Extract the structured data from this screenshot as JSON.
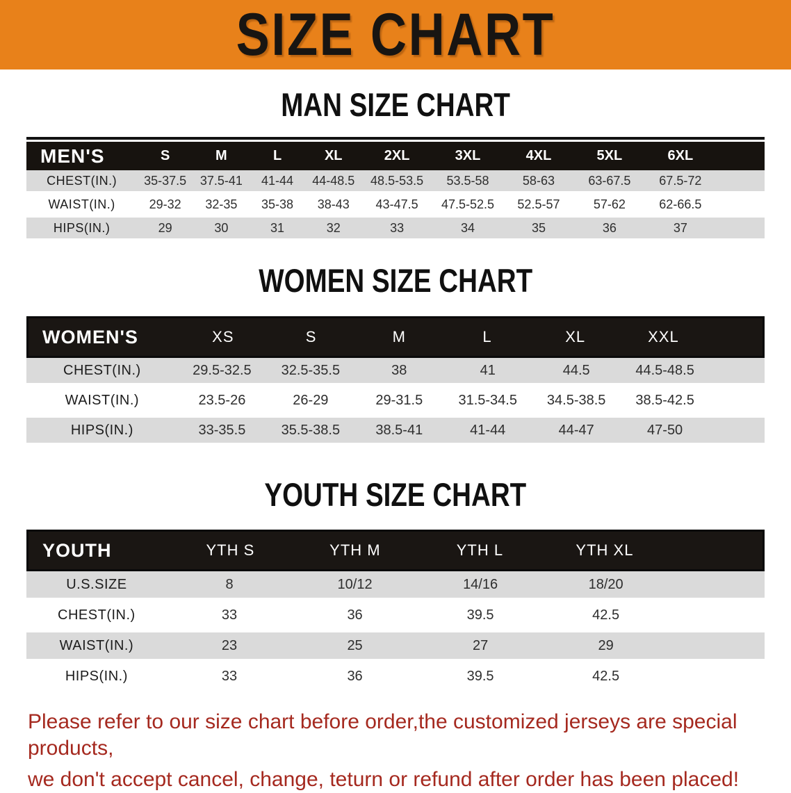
{
  "banner": {
    "title": "SIZE CHART"
  },
  "colors": {
    "banner_bg": "#e8811a",
    "header_bg": "#17130f",
    "row_gray": "#dadada",
    "footer_red": "#a5291f"
  },
  "sections": [
    {
      "heading": "MAN SIZE CHART",
      "group_label": "MEN'S",
      "sizes": [
        "S",
        "M",
        "L",
        "XL",
        "2XL",
        "3XL",
        "4XL",
        "5XL",
        "6XL"
      ],
      "rows": [
        {
          "label": "CHEST(IN.)",
          "values": [
            "35-37.5",
            "37.5-41",
            "41-44",
            "44-48.5",
            "48.5-53.5",
            "53.5-58",
            "58-63",
            "63-67.5",
            "67.5-72"
          ]
        },
        {
          "label": "WAIST(IN.)",
          "values": [
            "29-32",
            "32-35",
            "35-38",
            "38-43",
            "43-47.5",
            "47.5-52.5",
            "52.5-57",
            "57-62",
            "62-66.5"
          ]
        },
        {
          "label": "HIPS(IN.)",
          "values": [
            "29",
            "30",
            "31",
            "32",
            "33",
            "34",
            "35",
            "36",
            "37"
          ]
        }
      ]
    },
    {
      "heading": "WOMEN SIZE CHART",
      "group_label": "WOMEN'S",
      "sizes": [
        "XS",
        "S",
        "M",
        "L",
        "XL",
        "XXL"
      ],
      "rows": [
        {
          "label": "CHEST(IN.)",
          "values": [
            "29.5-32.5",
            "32.5-35.5",
            "38",
            "41",
            "44.5",
            "44.5-48.5"
          ]
        },
        {
          "label": "WAIST(IN.)",
          "values": [
            "23.5-26",
            "26-29",
            "29-31.5",
            "31.5-34.5",
            "34.5-38.5",
            "38.5-42.5"
          ]
        },
        {
          "label": "HIPS(IN.)",
          "values": [
            "33-35.5",
            "35.5-38.5",
            "38.5-41",
            "41-44",
            "44-47",
            "47-50"
          ]
        }
      ]
    },
    {
      "heading": "YOUTH SIZE CHART",
      "group_label": "YOUTH",
      "sizes": [
        "YTH S",
        "YTH M",
        "YTH L",
        "YTH XL"
      ],
      "rows": [
        {
          "label": "U.S.SIZE",
          "values": [
            "8",
            "10/12",
            "14/16",
            "18/20"
          ]
        },
        {
          "label": "CHEST(IN.)",
          "values": [
            "33",
            "36",
            "39.5",
            "42.5"
          ]
        },
        {
          "label": "WAIST(IN.)",
          "values": [
            "23",
            "25",
            "27",
            "29"
          ]
        },
        {
          "label": "HIPS(IN.)",
          "values": [
            "33",
            "36",
            "39.5",
            "42.5"
          ]
        }
      ]
    }
  ],
  "footer": {
    "line1": "Please refer to our size chart before order,the customized jerseys are special products,",
    "line2": "we don't accept cancel, change, teturn or refund after order has been placed!"
  }
}
